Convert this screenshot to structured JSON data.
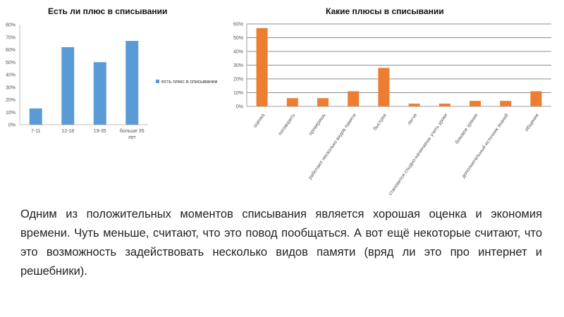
{
  "chart_data": [
    {
      "type": "bar",
      "title": "Есть ли плюс в списывании",
      "categories": [
        "7-11",
        "12-18",
        "19-35",
        "больше 35 лет"
      ],
      "series": [
        {
          "name": "есть плюс в списывании",
          "values": [
            13,
            62,
            50,
            67
          ],
          "color": "#5b9bd5"
        }
      ],
      "y_ticks": [
        "0%",
        "10%",
        "20%",
        "30%",
        "40%",
        "50%",
        "60%",
        "70%",
        "80%"
      ],
      "ylim": [
        0,
        80
      ],
      "legend": "right",
      "grid": false
    },
    {
      "type": "bar",
      "title": "Какие плюсы в списывании",
      "categories": [
        "оценка",
        "поговорить",
        "проверишь",
        "работают несколько видов памяти",
        "быстрее",
        "легче",
        "становится стыдно-начинаешь учить уроки",
        "боковое зрение",
        "дополнительный источник знаний",
        "общение"
      ],
      "series": [
        {
          "values": [
            57,
            6,
            6,
            11,
            28,
            2,
            2,
            4,
            4,
            11
          ],
          "color": "#ed7d31"
        }
      ],
      "y_ticks": [
        "0%",
        "10%",
        "20%",
        "30%",
        "40%",
        "50%",
        "60%"
      ],
      "ylim": [
        0,
        60
      ],
      "legend": "none",
      "grid": true
    }
  ],
  "paragraph": "Одним из положительных моментов списывания является хорошая оценка и экономия времени. Чуть меньше, считают, что это повод пообщаться. А вот ещё некоторые считают, что это возможность задействовать несколько видов памяти (вряд ли это про интернет и решебники)."
}
